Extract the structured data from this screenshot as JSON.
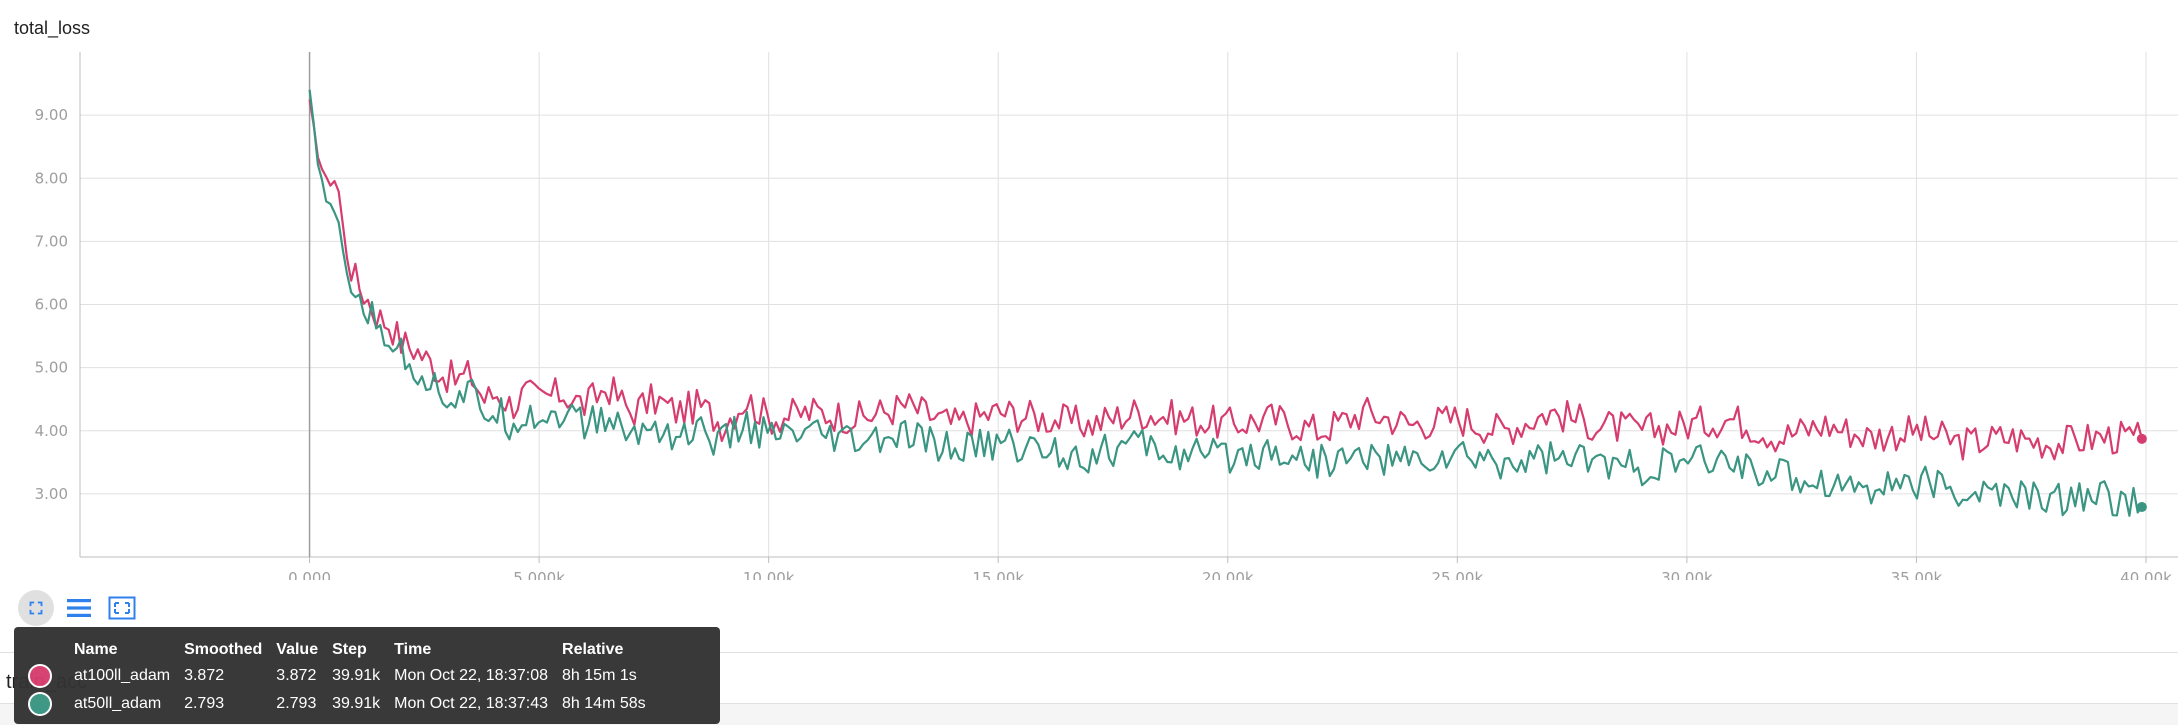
{
  "chart_data": {
    "type": "line",
    "title": "total_loss",
    "xlabel": "",
    "ylabel": "",
    "xlim": [
      -5000,
      40000
    ],
    "ylim": [
      2.0,
      10.0
    ],
    "x_ticks": [
      0,
      5000,
      10000,
      15000,
      20000,
      25000,
      30000,
      35000,
      40000
    ],
    "x_tick_labels": [
      "0.000",
      "5.000k",
      "10.00k",
      "15.00k",
      "20.00k",
      "25.00k",
      "30.00k",
      "35.00k",
      "40.00k"
    ],
    "y_ticks": [
      3,
      4,
      5,
      6,
      7,
      8,
      9
    ],
    "y_tick_labels": [
      "3.00",
      "4.00",
      "5.00",
      "6.00",
      "7.00",
      "8.00",
      "9.00"
    ],
    "grid": true,
    "series": [
      {
        "name": "at100ll_adam",
        "color": "#d63d6e",
        "x": [
          0,
          200,
          400,
          600,
          800,
          1000,
          1250,
          1500,
          1750,
          2000,
          2300,
          2600,
          2900,
          3200,
          3500,
          3800,
          4100,
          4400,
          4700,
          5000,
          5500,
          6000,
          6500,
          7000,
          7500,
          8000,
          8500,
          9000,
          9500,
          10000,
          11000,
          12000,
          13000,
          14000,
          15000,
          16000,
          17000,
          18000,
          19000,
          20000,
          21000,
          22000,
          23000,
          24000,
          25000,
          26000,
          27000,
          28000,
          29000,
          30000,
          31000,
          32000,
          33000,
          34000,
          35000,
          36000,
          37000,
          38000,
          39000,
          39910
        ],
        "y": [
          9.2,
          8.3,
          7.9,
          8.0,
          6.8,
          6.4,
          6.1,
          5.8,
          5.7,
          5.4,
          5.3,
          5.1,
          4.9,
          4.8,
          4.9,
          4.5,
          4.6,
          4.4,
          4.6,
          4.5,
          4.6,
          4.4,
          4.7,
          4.3,
          4.5,
          4.3,
          4.4,
          4.1,
          4.5,
          4.2,
          4.3,
          4.2,
          4.4,
          4.1,
          4.3,
          4.2,
          4.1,
          4.3,
          4.2,
          4.1,
          4.2,
          4.0,
          4.3,
          4.1,
          4.2,
          4.0,
          4.3,
          4.1,
          4.0,
          4.1,
          4.2,
          3.9,
          4.1,
          3.9,
          4.0,
          3.8,
          3.9,
          3.8,
          3.9,
          3.872
        ]
      },
      {
        "name": "at50ll_adam",
        "color": "#3a9582",
        "x": [
          0,
          200,
          400,
          600,
          800,
          1000,
          1250,
          1500,
          1750,
          2000,
          2300,
          2600,
          2900,
          3200,
          3500,
          3800,
          4100,
          4400,
          4700,
          5000,
          5500,
          6000,
          6500,
          7000,
          7500,
          8000,
          8500,
          9000,
          9500,
          10000,
          11000,
          12000,
          13000,
          14000,
          15000,
          16000,
          17000,
          18000,
          19000,
          20000,
          21000,
          22000,
          23000,
          24000,
          25000,
          26000,
          27000,
          28000,
          29000,
          30000,
          31000,
          32000,
          33000,
          34000,
          35000,
          36000,
          37000,
          38000,
          39000,
          39910
        ],
        "y": [
          9.4,
          8.1,
          7.6,
          7.4,
          6.5,
          6.2,
          5.9,
          5.6,
          5.5,
          5.2,
          5.0,
          4.8,
          4.6,
          4.5,
          4.6,
          4.3,
          4.3,
          4.1,
          4.3,
          4.2,
          4.3,
          4.1,
          4.2,
          3.9,
          4.1,
          3.9,
          4.0,
          3.8,
          4.1,
          3.9,
          3.9,
          3.8,
          3.9,
          3.7,
          3.8,
          3.7,
          3.6,
          3.8,
          3.6,
          3.6,
          3.7,
          3.5,
          3.6,
          3.5,
          3.6,
          3.5,
          3.6,
          3.5,
          3.4,
          3.5,
          3.5,
          3.3,
          3.2,
          3.1,
          3.2,
          3.0,
          3.0,
          2.9,
          3.0,
          2.793
        ]
      }
    ]
  },
  "toolbar": {
    "fullscreen_icon": "fullscreen-icon",
    "toggle_log_icon": "list-icon",
    "fit_domain_icon": "fit-domain-icon"
  },
  "tooltip": {
    "headers": [
      "Name",
      "Smoothed",
      "Value",
      "Step",
      "Time",
      "Relative"
    ],
    "rows": [
      {
        "color": "#d63d6e",
        "name": "at100ll_adam",
        "smoothed": "3.872",
        "value": "3.872",
        "step": "39.91k",
        "time": "Mon Oct 22, 18:37:08",
        "relative": "8h 15m 1s"
      },
      {
        "color": "#3a9582",
        "name": "at50ll_adam",
        "smoothed": "2.793",
        "value": "2.793",
        "step": "39.91k",
        "time": "Mon Oct 22, 18:37:43",
        "relative": "8h 14m 58s"
      }
    ]
  },
  "next_card": {
    "title": "train_acc"
  }
}
